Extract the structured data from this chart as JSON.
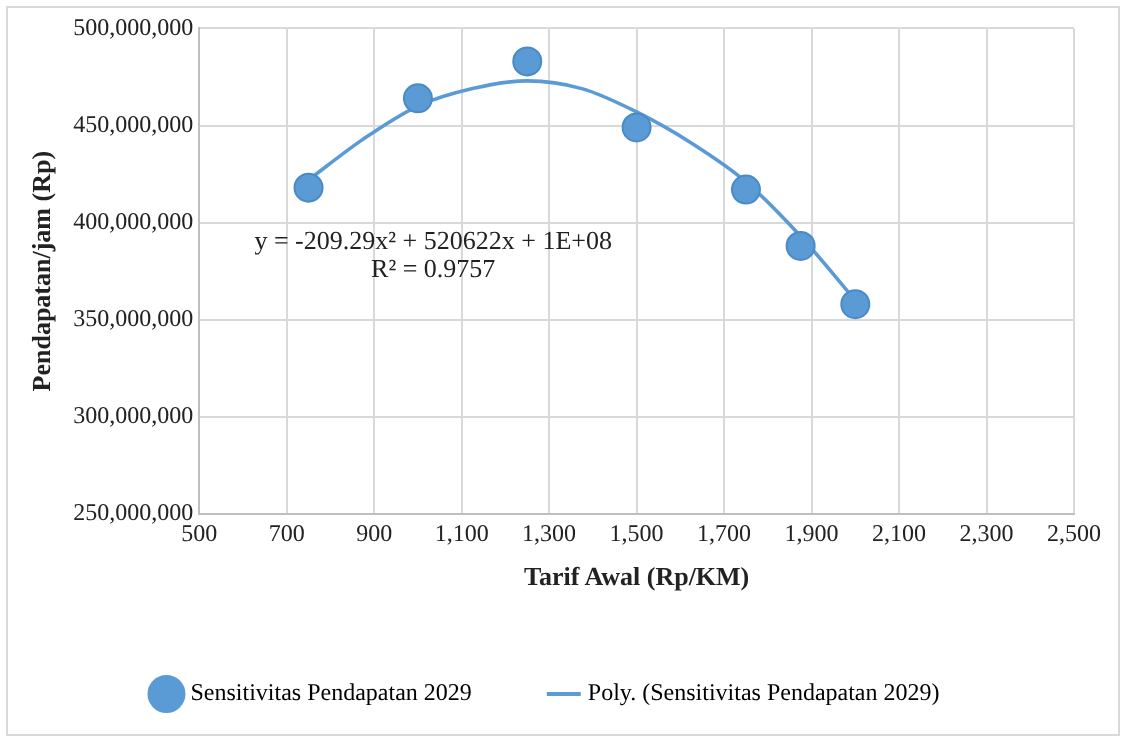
{
  "chart_data": {
    "type": "scatter",
    "xlabel": "Tarif Awal (Rp/KM)",
    "ylabel": "Pendapatan/jam (Rp)",
    "xlim": [
      500,
      2500
    ],
    "xticks": [
      {
        "value": 500,
        "label": "500"
      },
      {
        "value": 700,
        "label": "700"
      },
      {
        "value": 900,
        "label": "900"
      },
      {
        "value": 1100,
        "label": "1,100"
      },
      {
        "value": 1300,
        "label": "1,300"
      },
      {
        "value": 1500,
        "label": "1,500"
      },
      {
        "value": 1700,
        "label": "1,700"
      },
      {
        "value": 1900,
        "label": "1,900"
      },
      {
        "value": 2100,
        "label": "2,100"
      },
      {
        "value": 2300,
        "label": "2,300"
      },
      {
        "value": 2500,
        "label": "2,500"
      }
    ],
    "ylim": [
      250000000,
      500000000
    ],
    "yticks": [
      {
        "value": 250000000,
        "label": "250,000,000"
      },
      {
        "value": 300000000,
        "label": "300,000,000"
      },
      {
        "value": 350000000,
        "label": "350,000,000"
      },
      {
        "value": 400000000,
        "label": "400,000,000"
      },
      {
        "value": 450000000,
        "label": "450,000,000"
      },
      {
        "value": 500000000,
        "label": "500,000,000"
      }
    ],
    "grid": true,
    "legend": "bottom",
    "marker": "circle",
    "series": [
      {
        "name": "Sensitivitas Pendapatan 2029",
        "color": "#5b9bd5",
        "x": [
          750,
          1000,
          1250,
          1500,
          1750,
          1875,
          2000
        ],
        "values": [
          418000000,
          464000000,
          483000000,
          449000000,
          417000000,
          388000000,
          358000000
        ]
      },
      {
        "type": "line",
        "name": "Poly. (Sensitivitas Pendapatan 2029)",
        "color": "#5b9bd5",
        "line_style": "solid",
        "marker": "none",
        "x": [
          750,
          875,
          1000,
          1125,
          1250,
          1375,
          1500,
          1625,
          1750,
          1875,
          2000
        ],
        "values": [
          422000000,
          443000000,
          460000000,
          469000000,
          473000000,
          469000000,
          457000000,
          441000000,
          421000000,
          393000000,
          360000000
        ]
      }
    ],
    "annotations": [
      "y = -209.29x² + 520622x + 1E+08",
      "R² = 0.9757"
    ]
  }
}
